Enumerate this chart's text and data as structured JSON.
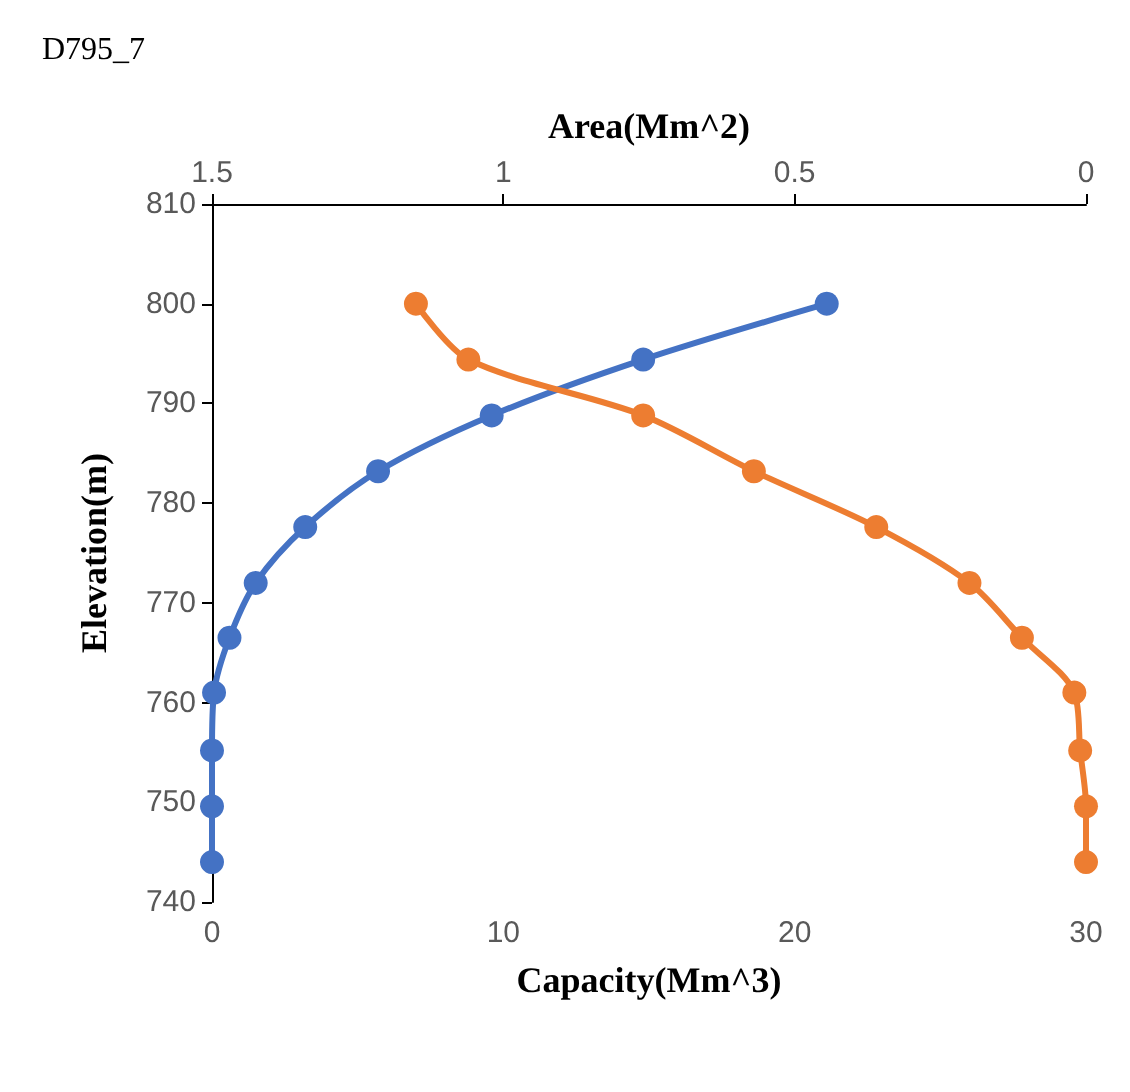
{
  "chart_data": {
    "type": "line",
    "title": "D795_7",
    "xlabel": "Capacity(Mm^3)",
    "x2label": "Area(Mm^2)",
    "ylabel": "Elevation(m)",
    "xlim": [
      0,
      30
    ],
    "xticks": [
      0,
      10,
      20,
      30
    ],
    "x2lim": [
      1.5,
      0
    ],
    "x2ticks": [
      1.5,
      1,
      0.5,
      0
    ],
    "ylim": [
      740,
      810
    ],
    "yticks": [
      740,
      750,
      760,
      770,
      780,
      790,
      800,
      810
    ],
    "grid": false,
    "marker": "circle",
    "line_style": "solid",
    "series": [
      {
        "color": "#4472c4",
        "x": [
          0,
          0,
          0,
          0.07,
          0.6,
          1.5,
          3.2,
          5.7,
          9.6,
          14.8,
          21.1
        ],
        "values": [
          744,
          749.6,
          755.2,
          761,
          766.5,
          772,
          777.6,
          783.2,
          788.8,
          794.4,
          800
        ]
      },
      {
        "color": "#ed7d31",
        "axis": "x2",
        "x": [
          1.15,
          1.06,
          0.76,
          0.57,
          0.36,
          0.2,
          0.11,
          0.02,
          0.01,
          0,
          0
        ],
        "values": [
          800,
          794.4,
          788.8,
          783.2,
          777.6,
          772,
          766.5,
          761,
          755.2,
          749.6,
          744
        ]
      }
    ]
  }
}
